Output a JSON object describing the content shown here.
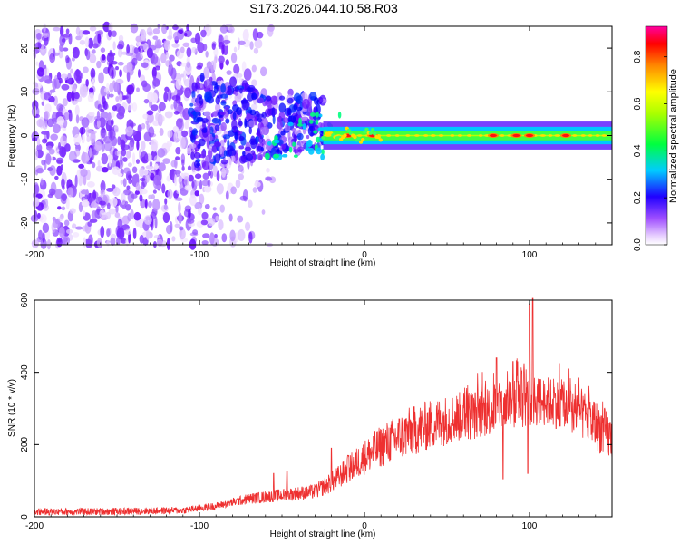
{
  "title": "S173.2026.044.10.58.R03",
  "chart_data": [
    {
      "type": "heatmap",
      "xlabel": "Height of straight line (km)",
      "ylabel": "Frequency (Hz)",
      "xlim": [
        -200,
        150
      ],
      "ylim": [
        -25,
        25
      ],
      "xticks": [
        "-200",
        "-100",
        "0",
        "100"
      ],
      "xtick_values": [
        -200,
        -100,
        0,
        100
      ],
      "yticks": [
        "-20",
        "-10",
        "0",
        "10",
        "20"
      ],
      "ytick_values": [
        -20,
        -10,
        0,
        10,
        20
      ],
      "colorbar": {
        "label": "Normalized spectral amplitude",
        "range": [
          0,
          0.93
        ],
        "ticks": [
          "0.0",
          "0.2",
          "0.4",
          "0.6",
          "0.8"
        ],
        "tick_values": [
          0.0,
          0.2,
          0.4,
          0.6,
          0.8
        ]
      },
      "features": {
        "noise_region_x": [
          -200,
          -85
        ],
        "transition_region_x": [
          -105,
          -25
        ],
        "band_region_x": [
          -25,
          150
        ],
        "band_center_hz": 0,
        "band_halfwidth_hz": 2,
        "hot_spots_x": [
          -10,
          5,
          78,
          92,
          100,
          122
        ]
      }
    },
    {
      "type": "line",
      "xlabel": "Height of straight line (km)",
      "ylabel": "SNR (10 * v/v)",
      "xlim": [
        -200,
        150
      ],
      "ylim": [
        0,
        600
      ],
      "xticks": [
        "-200",
        "-100",
        "0",
        "100"
      ],
      "xtick_values": [
        -200,
        -100,
        0,
        100
      ],
      "yticks": [
        "0",
        "200",
        "400",
        "600"
      ],
      "ytick_values": [
        0,
        200,
        400,
        600
      ],
      "series": [
        {
          "color": "#ee3030",
          "envelope_x": [
            -200,
            -150,
            -110,
            -90,
            -70,
            -50,
            -30,
            -20,
            -10,
            0,
            10,
            25,
            40,
            55,
            70,
            80,
            90,
            100,
            110,
            120,
            130,
            140,
            150
          ],
          "envelope_y": [
            14,
            15,
            18,
            30,
            50,
            60,
            70,
            95,
            130,
            165,
            195,
            230,
            255,
            275,
            285,
            300,
            310,
            320,
            320,
            310,
            290,
            255,
            215
          ],
          "spikes": [
            [
              -55,
              120
            ],
            [
              -47,
              125
            ],
            [
              -20,
              190
            ],
            [
              -10,
              170
            ],
            [
              80,
              440
            ],
            [
              90,
              430
            ],
            [
              100,
              590
            ],
            [
              102,
              610
            ],
            [
              84,
              105
            ],
            [
              99,
              120
            ]
          ]
        }
      ]
    }
  ]
}
